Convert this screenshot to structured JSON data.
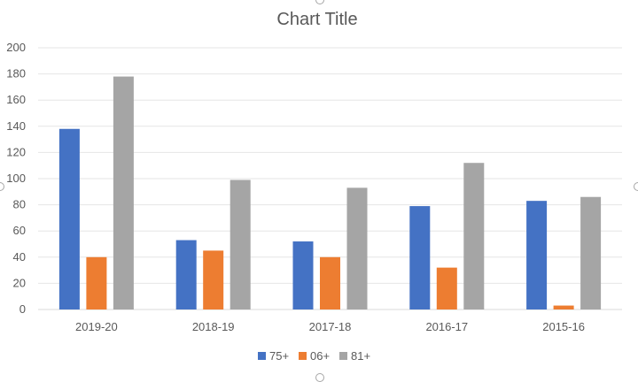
{
  "chart_data": {
    "type": "bar",
    "title": "Chart Title",
    "xlabel": "",
    "ylabel": "",
    "categories": [
      "2019-20",
      "2018-19",
      "2017-18",
      "2016-17",
      "2015-16"
    ],
    "series": [
      {
        "name": "75+",
        "color": "#4472c4",
        "values": [
          138,
          53,
          52,
          79,
          83
        ]
      },
      {
        "name": "06+",
        "color": "#ed7d31",
        "values": [
          40,
          45,
          40,
          32,
          3
        ]
      },
      {
        "name": "81+",
        "color": "#a5a5a5",
        "values": [
          178,
          99,
          93,
          112,
          86
        ]
      }
    ],
    "ylim": [
      0,
      200
    ],
    "yticks": [
      "0",
      "20",
      "40",
      "60",
      "80",
      "100",
      "120",
      "140",
      "160",
      "180",
      "200"
    ],
    "grid": true,
    "legend_position": "bottom"
  }
}
